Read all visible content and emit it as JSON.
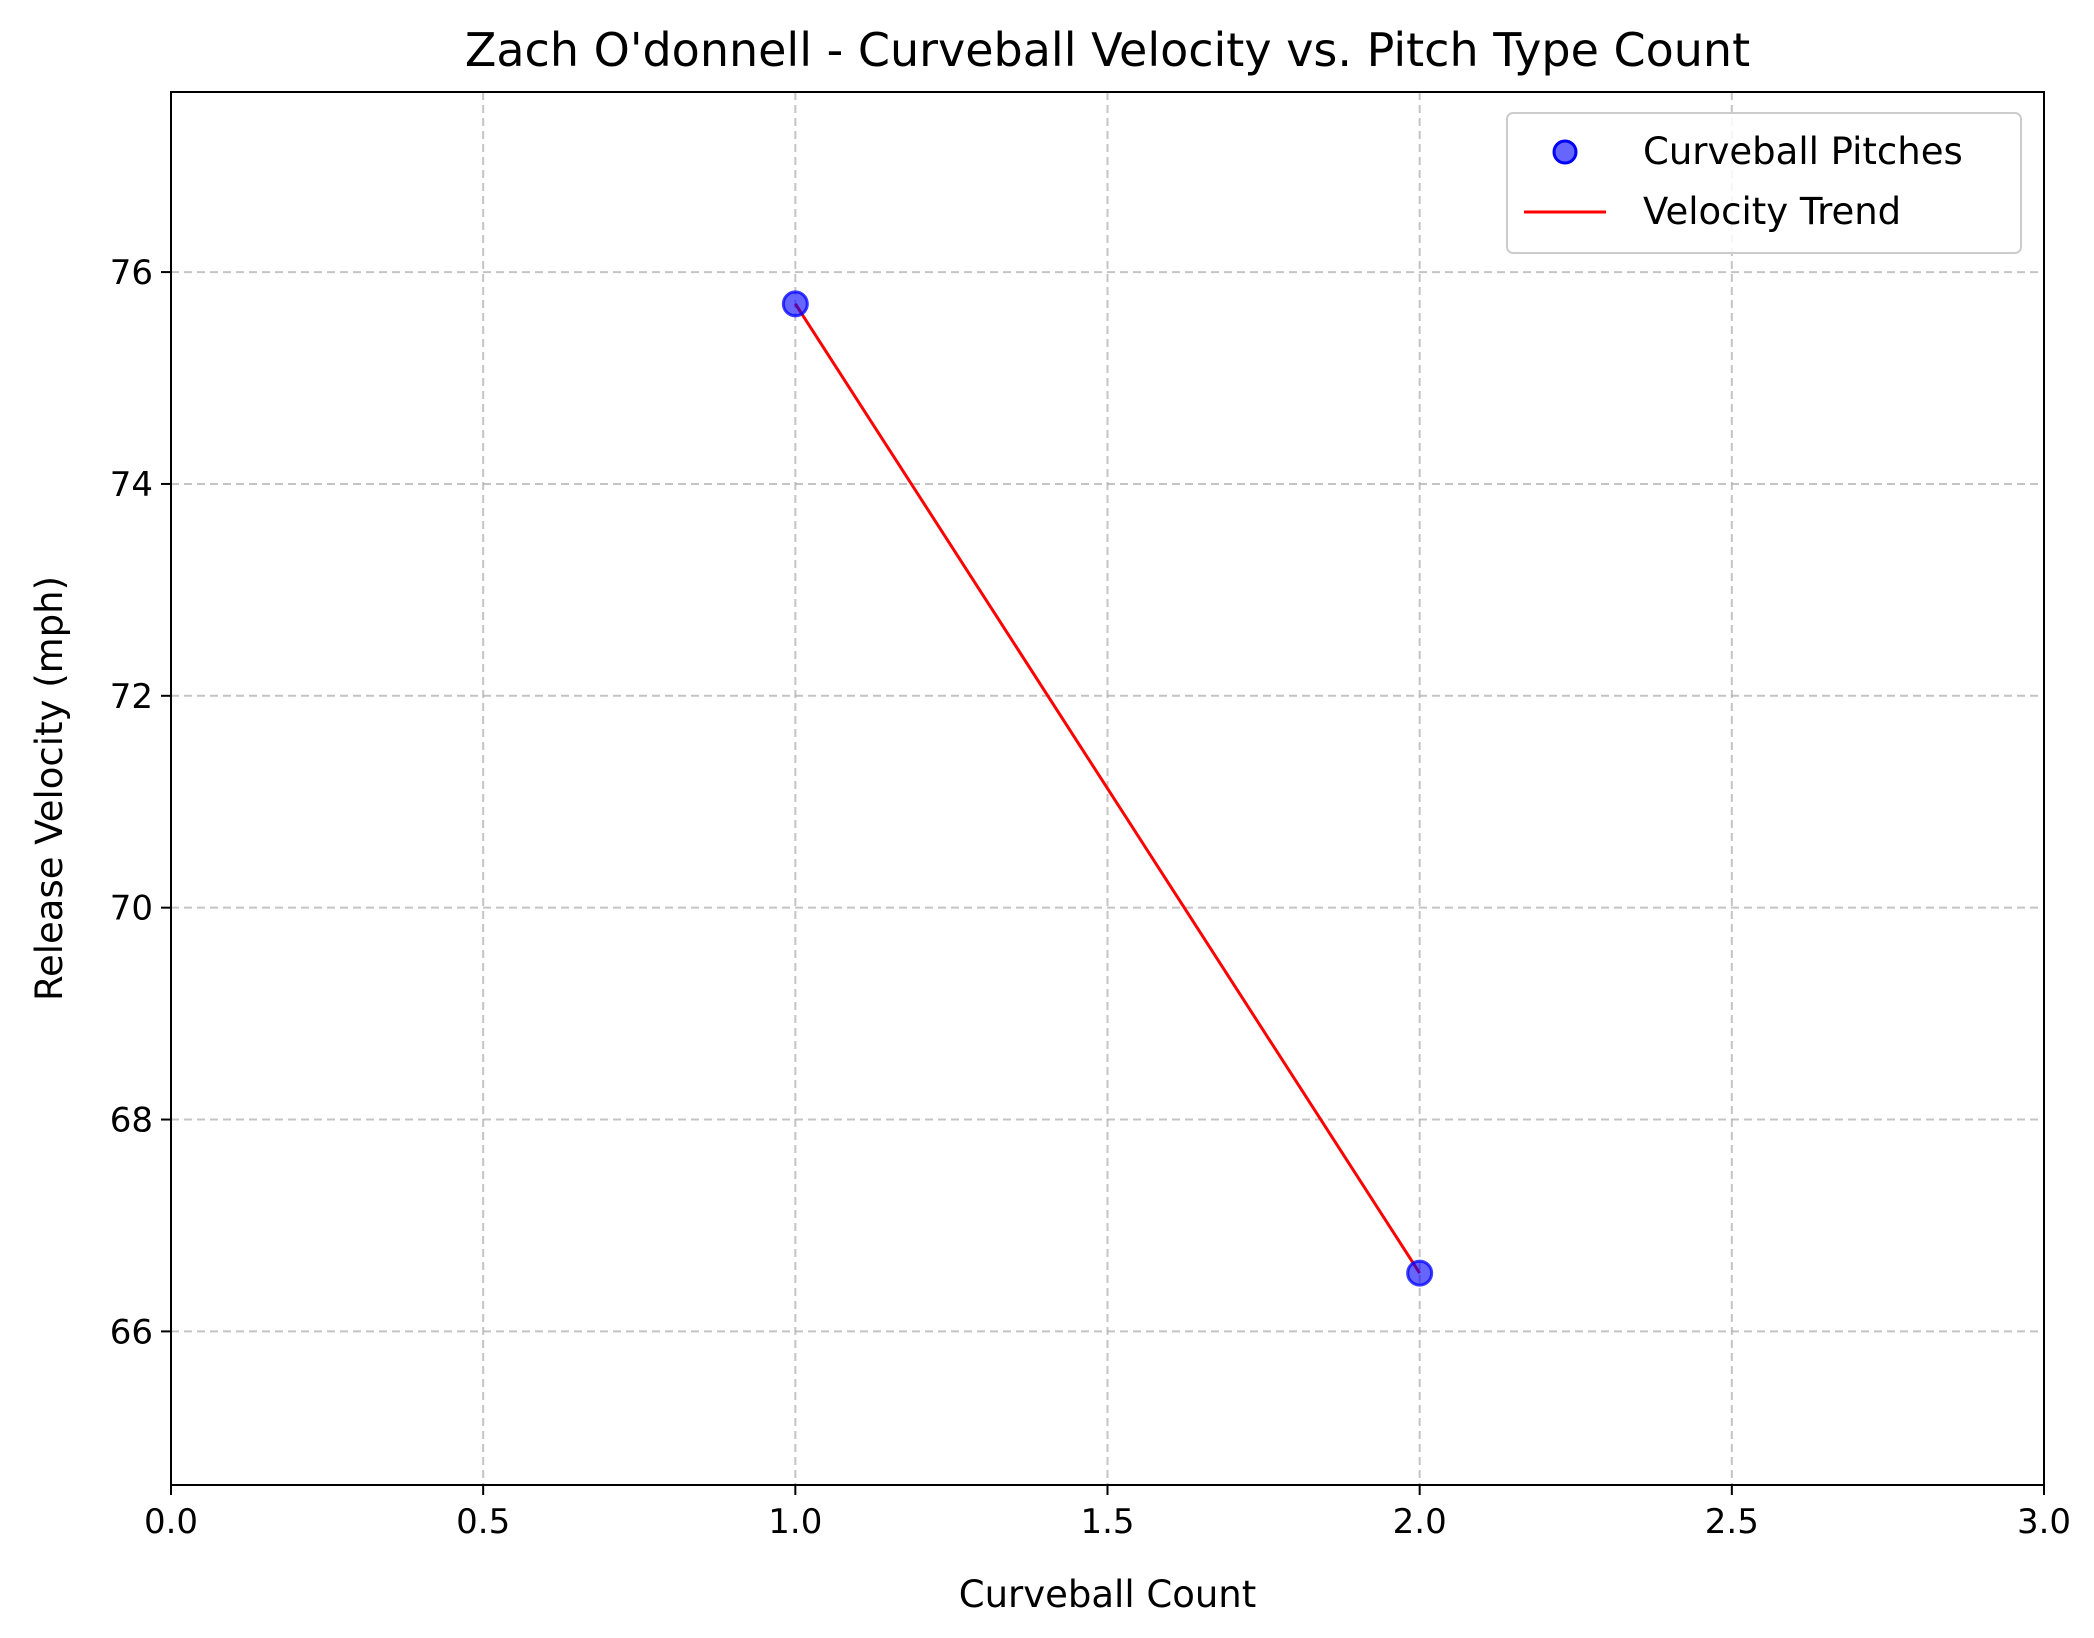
{
  "chart_data": {
    "type": "scatter",
    "title": "Zach O'donnell - Curveball Velocity vs. Pitch Type Count",
    "xlabel": "Curveball Count",
    "ylabel": "Release Velocity (mph)",
    "xlim": [
      0.0,
      3.0
    ],
    "ylim": [
      64.55,
      77.7
    ],
    "x_ticks": [
      "0.0",
      "0.5",
      "1.0",
      "1.5",
      "2.0",
      "2.5",
      "3.0"
    ],
    "x_tick_values": [
      0.0,
      0.5,
      1.0,
      1.5,
      2.0,
      2.5,
      3.0
    ],
    "y_ticks": [
      "66",
      "68",
      "70",
      "72",
      "74",
      "76"
    ],
    "y_tick_values": [
      66,
      68,
      70,
      72,
      74,
      76
    ],
    "grid": true,
    "legend_position": "top-right",
    "series": [
      {
        "name": "Curveball Pitches",
        "kind": "scatter",
        "color": "#0000ff",
        "x": [
          1.0,
          2.0
        ],
        "y": [
          75.7,
          66.55
        ]
      },
      {
        "name": "Velocity Trend",
        "kind": "line",
        "color": "#ff0000",
        "x": [
          1.0,
          2.0
        ],
        "y": [
          75.7,
          66.55
        ]
      }
    ]
  }
}
